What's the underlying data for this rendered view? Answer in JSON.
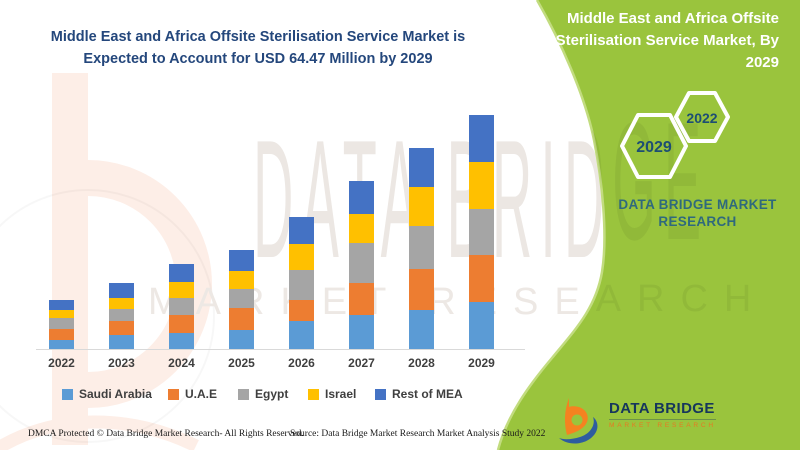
{
  "header": {
    "title_line1": "Middle East and Africa Offsite Sterilisation Service Market is",
    "title_line2": "Expected to Account for USD 64.47 Million by 2029"
  },
  "right_panel": {
    "title": "Middle East and Africa Offsite Sterilisation Service Market, By 2029",
    "hexagon_front": "2029",
    "hexagon_back": "2022",
    "brand_line1": "DATA BRIDGE MARKET",
    "brand_line2": "RESEARCH",
    "logo_name": "DATA BRIDGE",
    "logo_subtitle": "MARKET RESEARCH",
    "panel_green": "#9ac43d",
    "brand_teal": "#2f697d"
  },
  "watermark": {
    "line1": "DATA BRIDGE",
    "line2": "MARKET RESEARCH"
  },
  "footer": {
    "dmca": "DMCA Protected © Data Bridge Market Research- All Rights Reserved.",
    "source": "Source: Data Bridge Market Research Market Analysis Study 2022"
  },
  "chart_data": {
    "type": "bar",
    "stacked": true,
    "title": "Middle East and Africa Offsite Sterilisation Service Market",
    "unit": "USD Million",
    "total_2029_label": "USD 64.47 Million by 2029",
    "categories": [
      "2022",
      "2023",
      "2024",
      "2025",
      "2026",
      "2027",
      "2028",
      "2029"
    ],
    "totals": [
      13.7,
      18.2,
      23.4,
      27.4,
      36.3,
      46.1,
      55.4,
      64.47
    ],
    "series": [
      {
        "name": "Saudi Arabia",
        "color": "#5B9BD5",
        "values": [
          2.5,
          4.1,
          4.6,
          5.5,
          7.8,
          9.4,
          10.8,
          13.17
        ]
      },
      {
        "name": "U.A.E",
        "color": "#ED7D31",
        "values": [
          3.1,
          3.8,
          4.9,
          5.8,
          5.7,
          8.9,
          11.2,
          12.81
        ]
      },
      {
        "name": "Egypt",
        "color": "#A5A5A5",
        "values": [
          3.0,
          3.3,
          4.7,
          5.2,
          8.3,
          10.8,
          11.9,
          12.62
        ]
      },
      {
        "name": "Israel",
        "color": "#FFC000",
        "values": [
          2.3,
          2.9,
          4.3,
          5.1,
          7.2,
          8.0,
          10.8,
          12.97
        ]
      },
      {
        "name": "Rest of MEA",
        "color": "#4472C4",
        "values": [
          2.8,
          4.1,
          4.9,
          5.8,
          7.3,
          9.0,
          10.7,
          12.9
        ]
      }
    ],
    "xlabel": "",
    "ylabel": "",
    "legend_position": "bottom",
    "gridlines": false
  }
}
